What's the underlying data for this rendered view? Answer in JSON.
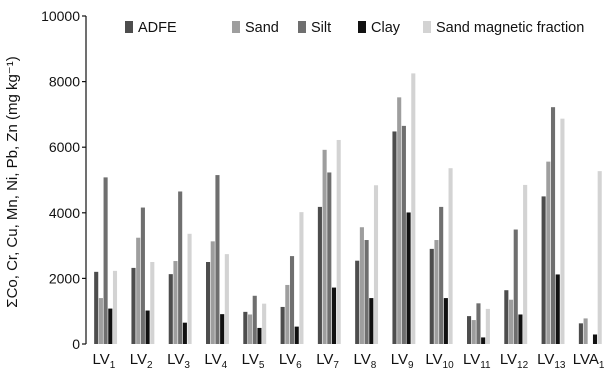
{
  "chart_data": {
    "type": "bar",
    "title": "",
    "xlabel": "",
    "ylabel": "ΣCo, Cr, Cu, Mn, Ni, Pb, Zn (mg kg⁻¹)",
    "ylim": [
      0,
      10000
    ],
    "yticks": [
      0,
      2000,
      4000,
      6000,
      8000,
      10000
    ],
    "legend_position": "top",
    "categories": [
      {
        "base": "LV",
        "sub": "1"
      },
      {
        "base": "LV",
        "sub": "2"
      },
      {
        "base": "LV",
        "sub": "3"
      },
      {
        "base": "LV",
        "sub": "4"
      },
      {
        "base": "LV",
        "sub": "5"
      },
      {
        "base": "LV",
        "sub": "6"
      },
      {
        "base": "LV",
        "sub": "7"
      },
      {
        "base": "LV",
        "sub": "8"
      },
      {
        "base": "LV",
        "sub": "9"
      },
      {
        "base": "LV",
        "sub": "10"
      },
      {
        "base": "LV",
        "sub": "11"
      },
      {
        "base": "LV",
        "sub": "12"
      },
      {
        "base": "LV",
        "sub": "13"
      },
      {
        "base": "LVA",
        "sub": "1"
      }
    ],
    "series": [
      {
        "name": "ADFE",
        "color": "#4d4d4d",
        "values": [
          2200,
          2320,
          2130,
          2500,
          980,
          1130,
          4180,
          2540,
          6480,
          2900,
          850,
          1640,
          4500,
          630
        ]
      },
      {
        "name": "Sand",
        "color": "#9e9e9e",
        "values": [
          1400,
          3240,
          2530,
          3130,
          900,
          1800,
          5920,
          3560,
          7520,
          3170,
          730,
          1350,
          5560,
          780
        ]
      },
      {
        "name": "Silt",
        "color": "#6f6f6f",
        "values": [
          5080,
          4160,
          4650,
          5150,
          1470,
          2680,
          5230,
          3170,
          6650,
          4180,
          1240,
          3490,
          7220,
          null
        ]
      },
      {
        "name": "Clay",
        "color": "#111111",
        "values": [
          1080,
          1020,
          650,
          910,
          490,
          530,
          1720,
          1400,
          4010,
          1400,
          200,
          900,
          2120,
          290
        ]
      },
      {
        "name": "Sand magnetic fraction",
        "color": "#d3d3d3",
        "values": [
          2230,
          2500,
          3360,
          2740,
          1230,
          4020,
          6220,
          4840,
          8250,
          5360,
          1070,
          4850,
          6870,
          5270
        ]
      }
    ]
  }
}
